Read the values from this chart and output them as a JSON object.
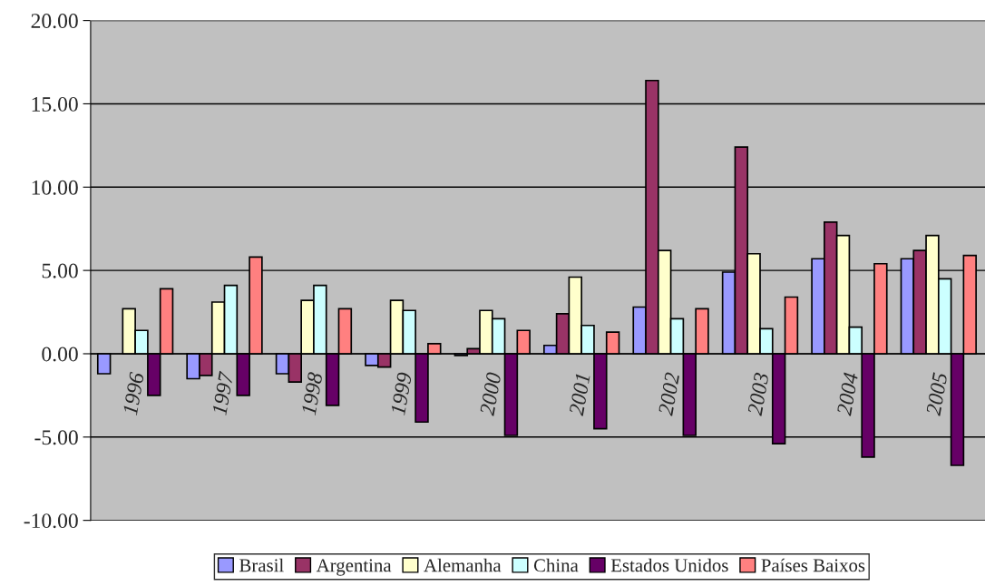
{
  "chart_data": {
    "type": "bar",
    "categories": [
      "1996",
      "1997",
      "1998",
      "1999",
      "2000",
      "2001",
      "2002",
      "2003",
      "2004",
      "2005"
    ],
    "series": [
      {
        "name": "Brasil",
        "color": "#9999ff",
        "values": [
          -1.2,
          -1.5,
          -1.2,
          -0.7,
          -0.1,
          0.5,
          2.8,
          4.9,
          5.7,
          5.7
        ]
      },
      {
        "name": "Argentina",
        "color": "#993366",
        "values": [
          null,
          -1.3,
          -1.7,
          -0.8,
          0.3,
          2.4,
          16.4,
          12.4,
          7.9,
          6.2
        ]
      },
      {
        "name": "Alemanha",
        "color": "#ffffcc",
        "values": [
          2.7,
          3.1,
          3.2,
          3.2,
          2.6,
          4.6,
          6.2,
          6.0,
          7.1,
          7.1
        ]
      },
      {
        "name": "China",
        "color": "#ccffff",
        "values": [
          1.4,
          4.1,
          4.1,
          2.6,
          2.1,
          1.7,
          2.1,
          1.5,
          1.6,
          4.5
        ]
      },
      {
        "name": "Estados Unidos",
        "color": "#660066",
        "values": [
          -2.5,
          -2.5,
          -3.1,
          -4.1,
          -4.9,
          -4.5,
          -4.9,
          -5.4,
          -6.2,
          -6.7
        ]
      },
      {
        "name": "Países Baixos",
        "color": "#ff8080",
        "values": [
          3.9,
          5.8,
          2.7,
          0.6,
          1.4,
          1.3,
          2.7,
          3.4,
          5.4,
          5.9
        ]
      }
    ],
    "ylim": [
      -10,
      20
    ],
    "yticks": [
      {
        "value": -10,
        "label": "-10.00"
      },
      {
        "value": -5,
        "label": "-5.00"
      },
      {
        "value": 0,
        "label": "0.00"
      },
      {
        "value": 5,
        "label": "5.00"
      },
      {
        "value": 10,
        "label": "10.00"
      },
      {
        "value": 15,
        "label": "15.00"
      },
      {
        "value": 20,
        "label": "20.00"
      }
    ],
    "grid": "y",
    "legend": "bottom"
  }
}
